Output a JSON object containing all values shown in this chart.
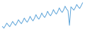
{
  "title": "",
  "line_color": "#5ba3d9",
  "background_color": "#ffffff",
  "linewidth": 0.7,
  "figsize": [
    1.2,
    0.45
  ],
  "dpi": 100,
  "values": [
    88.5,
    87.0,
    89.2,
    91.5,
    89.8,
    88.3,
    90.5,
    93.0,
    91.0,
    89.5,
    91.8,
    94.5,
    92.5,
    91.0,
    93.2,
    96.0,
    93.8,
    92.3,
    94.5,
    97.5,
    95.0,
    93.5,
    95.8,
    99.0,
    96.5,
    95.0,
    97.2,
    100.5,
    98.0,
    96.5,
    98.8,
    102.0,
    99.5,
    98.0,
    100.2,
    103.5,
    101.0,
    99.5,
    101.8,
    105.0,
    102.5,
    101.0,
    103.2,
    106.5,
    104.0,
    102.5,
    89.5,
    106.0,
    104.5,
    103.0,
    105.2,
    108.0,
    106.0,
    104.5,
    106.8,
    109.5
  ]
}
